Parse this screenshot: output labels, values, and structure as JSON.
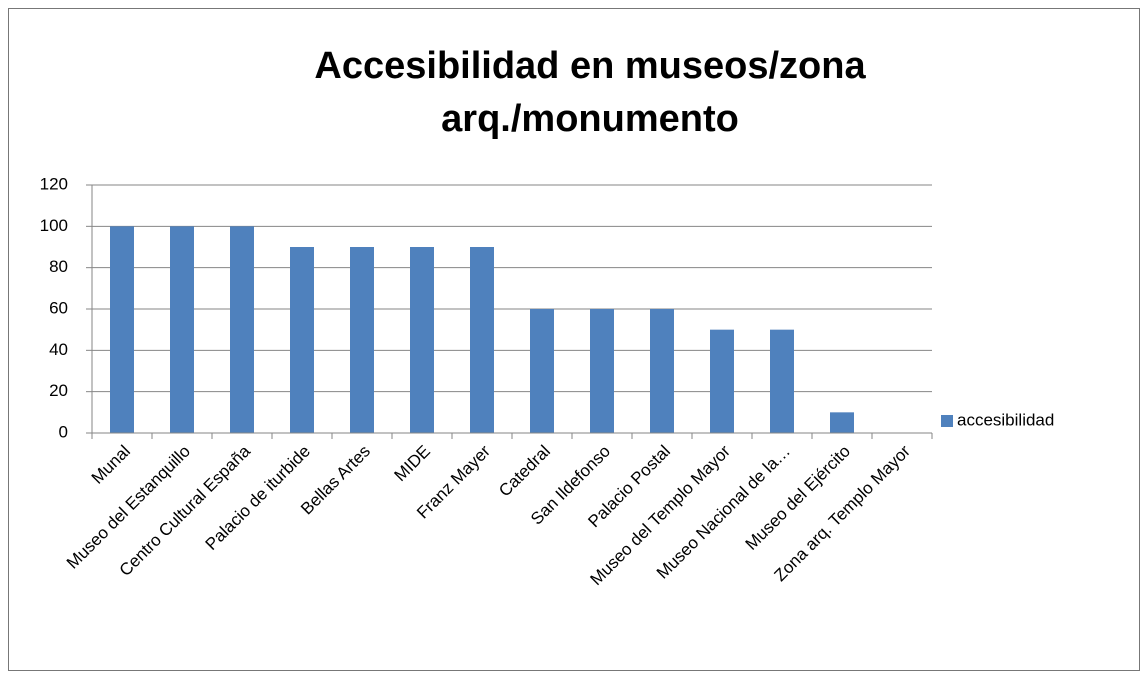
{
  "chart_data": {
    "type": "bar",
    "title": "Accesibilidad en museos/zona arq./monumento",
    "categories": [
      "Munal",
      "Museo del Estanquillo",
      "Centro Cultural España",
      "Palacio de iturbide",
      "Bellas Artes",
      "MIDE",
      "Franz Mayer",
      "Catedral",
      "San Ildefonso",
      "Palacio Postal",
      "Museo del Templo Mayor",
      "Museo Nacional de la…",
      "Museo del Ejército",
      "Zona arq. Templo Mayor"
    ],
    "series": [
      {
        "name": "accesibilidad",
        "color": "#4f81bd",
        "values": [
          100,
          100,
          100,
          90,
          90,
          90,
          90,
          60,
          60,
          60,
          50,
          50,
          10,
          0
        ]
      }
    ],
    "ylim": [
      0,
      120
    ],
    "yticks": [
      0,
      20,
      40,
      60,
      80,
      100,
      120
    ],
    "grid": true,
    "legend": "right"
  }
}
